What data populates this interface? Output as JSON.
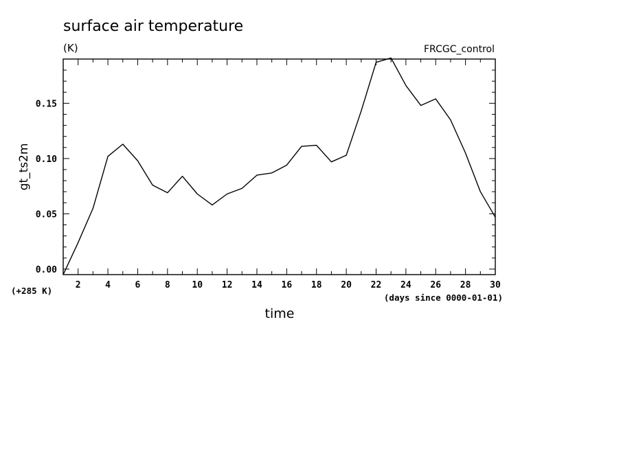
{
  "chart_data": {
    "type": "line",
    "title": "surface air temperature",
    "units": "(K)",
    "experiment": "FRCGC_control",
    "ylabel": "gt_ts2m",
    "xlabel": "time",
    "x_units": "(days since 0000-01-01)",
    "y_offset_label": "(+285 K)",
    "xlim": [
      1,
      30
    ],
    "ylim": [
      -0.005,
      0.19
    ],
    "x_ticks": [
      2,
      4,
      6,
      8,
      10,
      12,
      14,
      16,
      18,
      20,
      22,
      24,
      26,
      28,
      30
    ],
    "x_tick_labels": [
      "2",
      "4",
      "6",
      "8",
      "10",
      "12",
      "14",
      "16",
      "18",
      "20",
      "22",
      "24",
      "26",
      "28",
      "30"
    ],
    "y_ticks": [
      0.0,
      0.05,
      0.1,
      0.15
    ],
    "y_tick_labels": [
      "0.00",
      "0.05",
      "0.10",
      "0.15"
    ],
    "grid": false,
    "series": [
      {
        "x": [
          1,
          2,
          3,
          4,
          5,
          6,
          7,
          8,
          9,
          10,
          11,
          12,
          13,
          14,
          15,
          16,
          17,
          18,
          19,
          20,
          21,
          22,
          23,
          24,
          25,
          26,
          27,
          28,
          29,
          30
        ],
        "y": [
          -0.005,
          0.024,
          0.055,
          0.102,
          0.113,
          0.098,
          0.076,
          0.069,
          0.084,
          0.068,
          0.058,
          0.068,
          0.073,
          0.085,
          0.087,
          0.094,
          0.111,
          0.112,
          0.097,
          0.103,
          0.143,
          0.187,
          0.191,
          0.166,
          0.148,
          0.154,
          0.135,
          0.105,
          0.07,
          0.047
        ]
      }
    ]
  }
}
